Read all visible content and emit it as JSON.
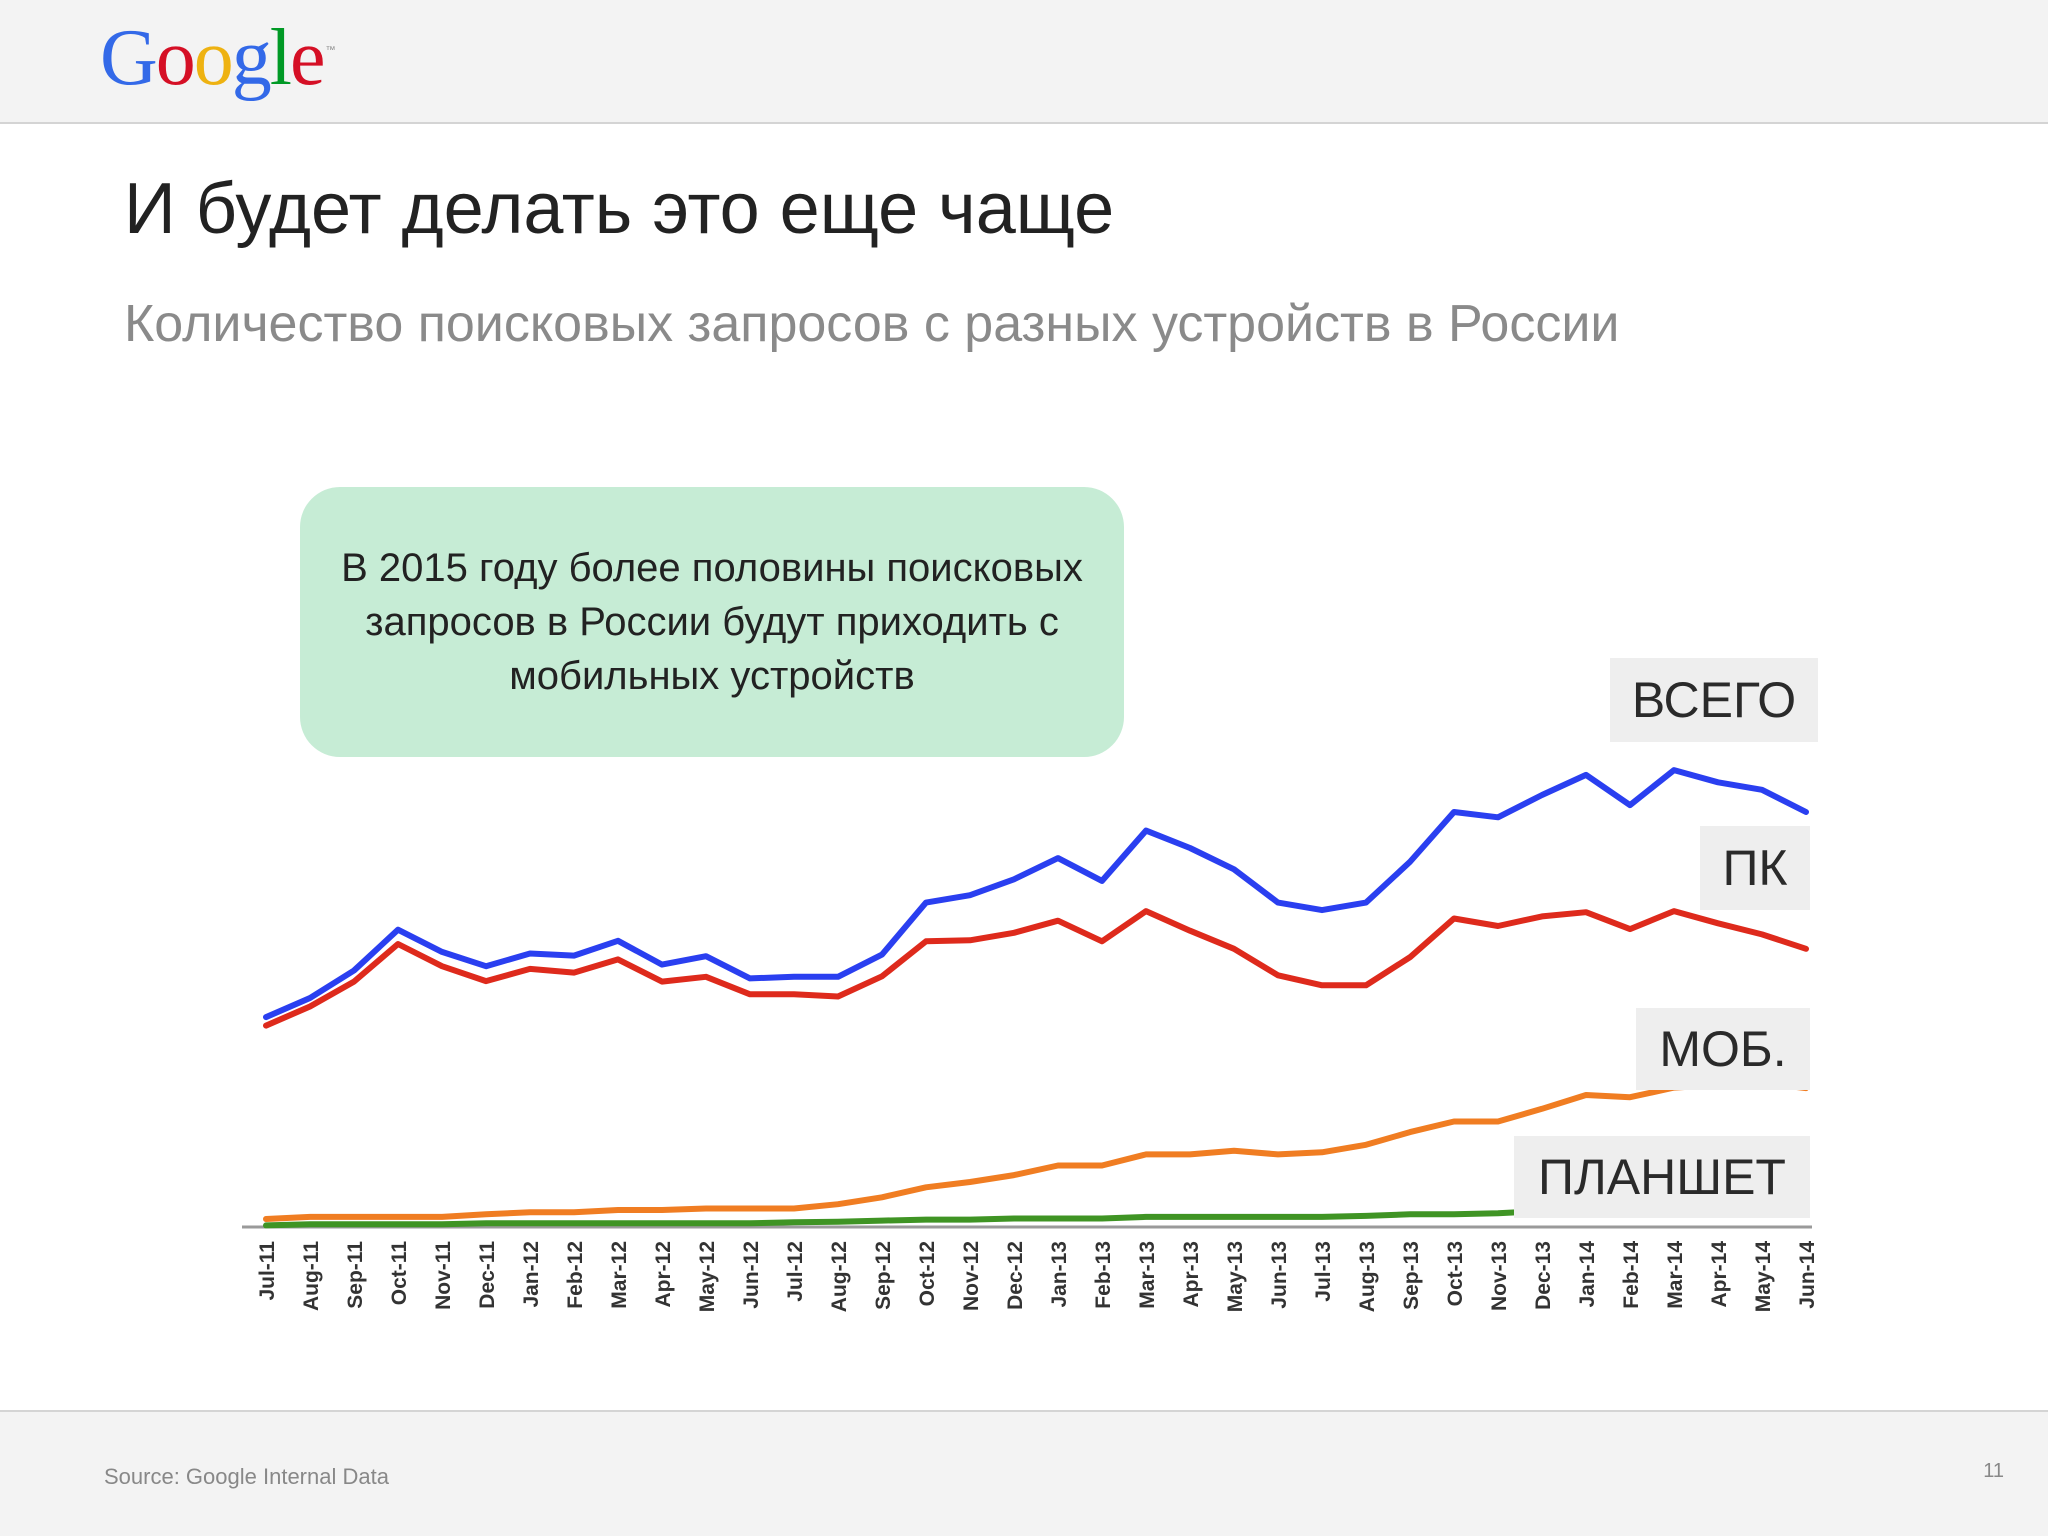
{
  "header": {
    "logo_letters": [
      {
        "char": "G",
        "color": "#3369e8"
      },
      {
        "char": "o",
        "color": "#d50f25"
      },
      {
        "char": "o",
        "color": "#eeb211"
      },
      {
        "char": "g",
        "color": "#3369e8"
      },
      {
        "char": "l",
        "color": "#009925"
      },
      {
        "char": "e",
        "color": "#d50f25"
      }
    ],
    "logo_tm": "™"
  },
  "slide": {
    "title": "И будет делать это еще чаще",
    "subtitle": "Количество поисковых запросов с разных устройств в России",
    "callout": "В 2015 году более половины поисковых запросов в России будут приходить с мобильных устройств",
    "source": "Source: Google Internal Data",
    "page_number": "11"
  },
  "chart_data": {
    "type": "line",
    "title": "",
    "xlabel": "",
    "ylabel": "",
    "ylim": [
      0,
      100
    ],
    "grid": false,
    "categories": [
      "Jul-11",
      "Aug-11",
      "Sep-11",
      "Oct-11",
      "Nov-11",
      "Dec-11",
      "Jan-12",
      "Feb-12",
      "Mar-12",
      "Apr-12",
      "May-12",
      "Jun-12",
      "Jul-12",
      "Aug-12",
      "Sep-12",
      "Oct-12",
      "Nov-12",
      "Dec-12",
      "Jan-13",
      "Feb-13",
      "Mar-13",
      "Apr-13",
      "May-13",
      "Jun-13",
      "Jul-13",
      "Aug-13",
      "Sep-13",
      "Oct-13",
      "Nov-13",
      "Dec-13",
      "Jan-14",
      "Feb-14",
      "Mar-14",
      "Apr-14",
      "May-14",
      "Jun-14"
    ],
    "series": [
      {
        "name": "ВСЕГО",
        "color": "#2a3ff0",
        "values": [
          39.6,
          43.2,
          48.4,
          56.1,
          51.9,
          49.2,
          51.6,
          51.2,
          54.0,
          49.5,
          51.1,
          46.9,
          47.2,
          47.2,
          51.4,
          61.2,
          62.6,
          65.6,
          69.6,
          65.3,
          74.8,
          71.5,
          67.5,
          61.2,
          59.8,
          61.2,
          68.9,
          78.3,
          77.3,
          81.5,
          85.3,
          79.6,
          86.2,
          83.9,
          82.5,
          78.3
        ]
      },
      {
        "name": "ПК",
        "color": "#de2a1c",
        "values": [
          38.0,
          41.6,
          46.3,
          53.4,
          49.2,
          46.4,
          48.7,
          48.0,
          50.5,
          46.3,
          47.2,
          43.9,
          43.9,
          43.5,
          47.3,
          53.9,
          54.1,
          55.5,
          57.8,
          53.9,
          59.6,
          55.9,
          52.5,
          47.5,
          45.6,
          45.6,
          50.9,
          58.2,
          56.8,
          58.6,
          59.4,
          56.2,
          59.6,
          57.3,
          55.2,
          52.5
        ]
      },
      {
        "name": "МОБ.",
        "color": "#f07d22",
        "values": [
          1.5,
          1.9,
          1.9,
          1.9,
          1.9,
          2.4,
          2.8,
          2.8,
          3.2,
          3.2,
          3.5,
          3.5,
          3.5,
          4.3,
          5.6,
          7.5,
          8.5,
          9.8,
          11.6,
          11.6,
          13.7,
          13.7,
          14.4,
          13.7,
          14.1,
          15.5,
          17.9,
          19.9,
          19.9,
          22.3,
          24.9,
          24.5,
          26.3,
          26.8,
          27.2,
          26.2
        ]
      },
      {
        "name": "ПЛАНШЕТ",
        "color": "#3f9424",
        "values": [
          0.3,
          0.5,
          0.5,
          0.5,
          0.5,
          0.7,
          0.7,
          0.7,
          0.7,
          0.7,
          0.7,
          0.7,
          0.9,
          1.0,
          1.2,
          1.4,
          1.4,
          1.6,
          1.6,
          1.6,
          1.9,
          1.9,
          1.9,
          1.9,
          1.9,
          2.1,
          2.4,
          2.4,
          2.6,
          3.0,
          3.0,
          3.3,
          3.5,
          3.5,
          3.7,
          3.7
        ]
      }
    ]
  }
}
